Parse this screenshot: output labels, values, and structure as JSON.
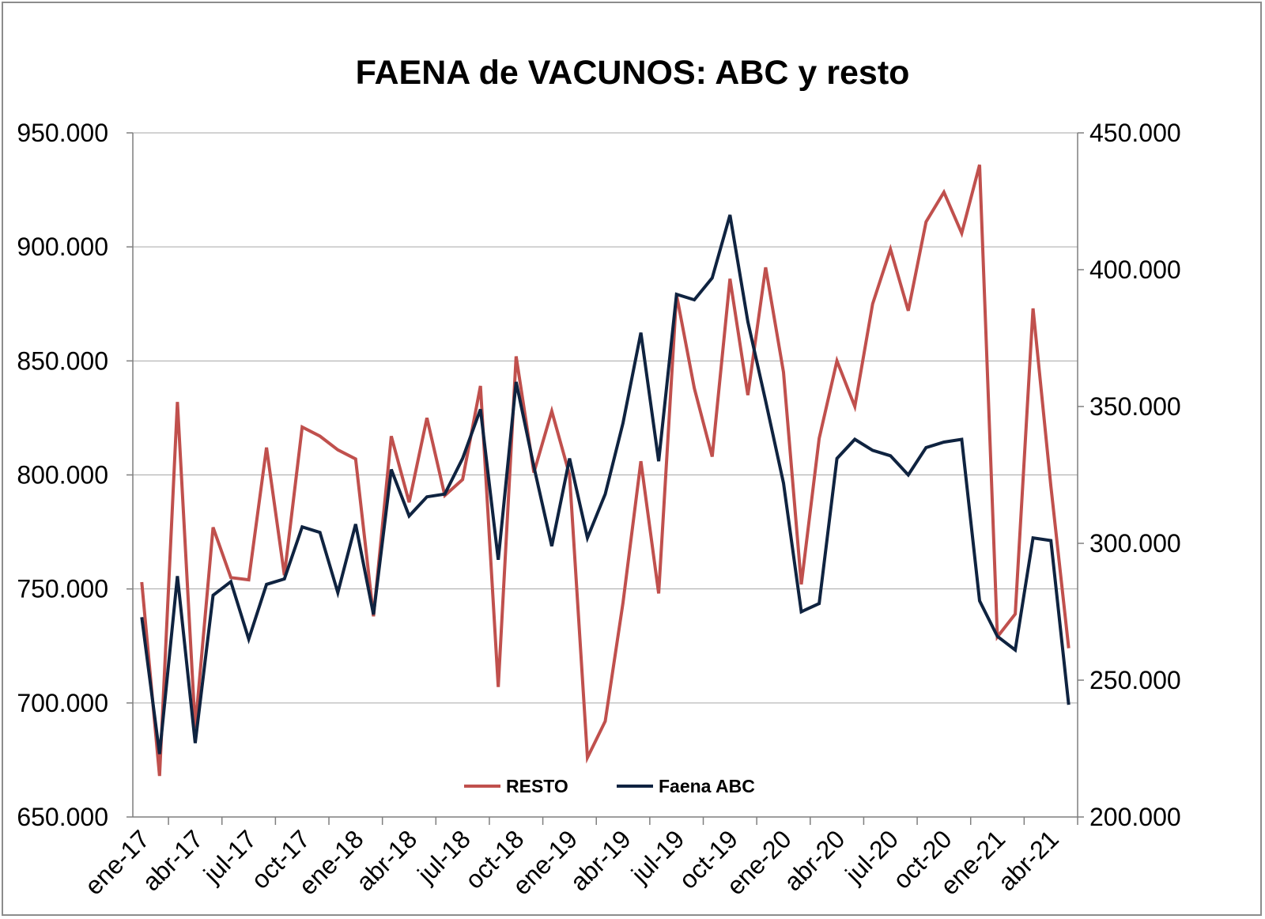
{
  "chart_data": {
    "type": "line",
    "title": "FAENA de VACUNOS: ABC y resto",
    "xlabel": "",
    "ylabel": "",
    "y_left": {
      "min": 650000,
      "max": 950000,
      "step": 50000,
      "tick_labels": [
        "650.000",
        "700.000",
        "750.000",
        "800.000",
        "850.000",
        "900.000",
        "950.000"
      ]
    },
    "y_right": {
      "min": 200000,
      "max": 450000,
      "step": 50000,
      "tick_labels": [
        "200.000",
        "250.000",
        "300.000",
        "350.000",
        "400.000",
        "450.000"
      ]
    },
    "x_tick_labels": [
      "ene-17",
      "abr-17",
      "jul-17",
      "oct-17",
      "ene-18",
      "abr-18",
      "jul-18",
      "oct-18",
      "ene-19",
      "abr-19",
      "jul-19",
      "oct-19",
      "ene-20",
      "abr-20",
      "jul-20",
      "oct-20",
      "ene-21",
      "abr-21"
    ],
    "grid": "horizontal",
    "legend_position": "bottom-center",
    "series": [
      {
        "name": "RESTO",
        "axis": "left",
        "color": "#c0504d",
        "values": [
          753000,
          668000,
          832000,
          689000,
          777000,
          755000,
          754000,
          812000,
          756000,
          821000,
          817000,
          811000,
          807000,
          738000,
          817000,
          788000,
          825000,
          791000,
          798000,
          839000,
          707000,
          852000,
          801000,
          828000,
          800000,
          676000,
          692000,
          744000,
          806000,
          748000,
          879000,
          838000,
          808000,
          886000,
          835000,
          891000,
          845000,
          752000,
          816000,
          850000,
          830000,
          875000,
          899000,
          872000,
          911000,
          924000,
          906000,
          936000,
          729000,
          739000,
          873000,
          795000,
          724000
        ]
      },
      {
        "name": "Faena ABC",
        "axis": "right",
        "color": "#0f2340",
        "values": [
          273000,
          223000,
          288000,
          227000,
          281000,
          286000,
          265000,
          285000,
          287000,
          306000,
          304000,
          282000,
          307000,
          274000,
          327000,
          310000,
          317000,
          318000,
          331000,
          349000,
          294000,
          359000,
          328000,
          299000,
          331000,
          302000,
          318000,
          344000,
          377000,
          330000,
          391000,
          389000,
          397000,
          420000,
          381000,
          352000,
          322000,
          275000,
          278000,
          331000,
          338000,
          334000,
          332000,
          325000,
          335000,
          337000,
          338000,
          279000,
          266000,
          261000,
          302000,
          301000,
          241000
        ]
      }
    ]
  }
}
